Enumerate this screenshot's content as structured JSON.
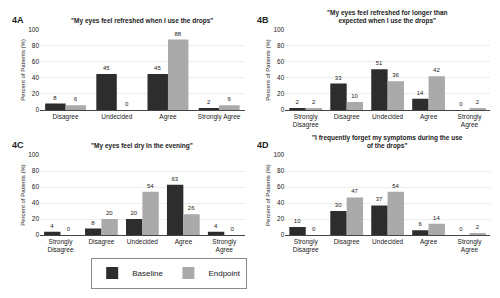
{
  "chart_data": [
    {
      "type": "bar",
      "annotations": [
        "4A"
      ],
      "title": "\"My eyes feel refreshed when I use the drops\"",
      "categories": [
        "Disagree",
        "Undecided",
        "Agree",
        "Strongly Agree"
      ],
      "series": [
        {
          "name": "Baseline",
          "color": "#2d2d2d",
          "values": [
            8,
            45,
            45,
            2
          ]
        },
        {
          "name": "Endpoint",
          "color": "#aaaaaa",
          "values": [
            6,
            0,
            88,
            6
          ]
        }
      ],
      "ylabel": "Percent of Patients (%)",
      "ylim": [
        0,
        100
      ],
      "yticks": [
        0,
        20,
        40,
        60,
        80,
        100
      ],
      "grid": true,
      "data_labels": true
    },
    {
      "type": "bar",
      "annotations": [
        "4B"
      ],
      "title": "\"My eyes feel refreshed for longer than\nexpected when I use the drops\"",
      "categories": [
        "Strongly\nDisagree",
        "Disagree",
        "Undecided",
        "Agree",
        "Strongly\nAgree"
      ],
      "series": [
        {
          "name": "Baseline",
          "color": "#2d2d2d",
          "values": [
            2,
            33,
            51,
            14,
            0
          ]
        },
        {
          "name": "Endpoint",
          "color": "#aaaaaa",
          "values": [
            2,
            10,
            36,
            42,
            2
          ]
        }
      ],
      "ylabel": "Percent of Patients (%)",
      "ylim": [
        0,
        100
      ],
      "yticks": [
        0,
        20,
        40,
        60,
        80,
        100
      ],
      "grid": true,
      "data_labels": true
    },
    {
      "type": "bar",
      "annotations": [
        "4C"
      ],
      "title": "\"My eyes feel dry In the evening\"",
      "categories": [
        "Strongly\nDisagree",
        "Disagree",
        "Undecided",
        "Agree",
        "Strongly\nAgree"
      ],
      "series": [
        {
          "name": "Baseline",
          "color": "#2d2d2d",
          "values": [
            4,
            8,
            20,
            63,
            4
          ]
        },
        {
          "name": "Endpoint",
          "color": "#aaaaaa",
          "values": [
            0,
            20,
            54,
            26,
            0
          ]
        }
      ],
      "ylabel": "Percent of Patients (%)",
      "ylim": [
        0,
        100
      ],
      "yticks": [
        0,
        20,
        40,
        60,
        80,
        100
      ],
      "grid": true,
      "data_labels": true,
      "legend": "bottom"
    },
    {
      "type": "bar",
      "annotations": [
        "4D"
      ],
      "title": "\"I frequently forget my symptoms during the use\nof the drops\"",
      "categories": [
        "Strongly\nDisagree",
        "Disagree",
        "Undecided",
        "Agree",
        "Strongly\nAgree"
      ],
      "series": [
        {
          "name": "Baseline",
          "color": "#2d2d2d",
          "values": [
            10,
            30,
            37,
            6,
            0
          ]
        },
        {
          "name": "Endpoint",
          "color": "#aaaaaa",
          "values": [
            0,
            47,
            54,
            14,
            2
          ]
        }
      ],
      "ylabel": "Percent of Patients (%)",
      "ylim": [
        0,
        100
      ],
      "yticks": [
        0,
        20,
        40,
        60,
        80,
        100
      ],
      "grid": true,
      "data_labels": true
    }
  ]
}
